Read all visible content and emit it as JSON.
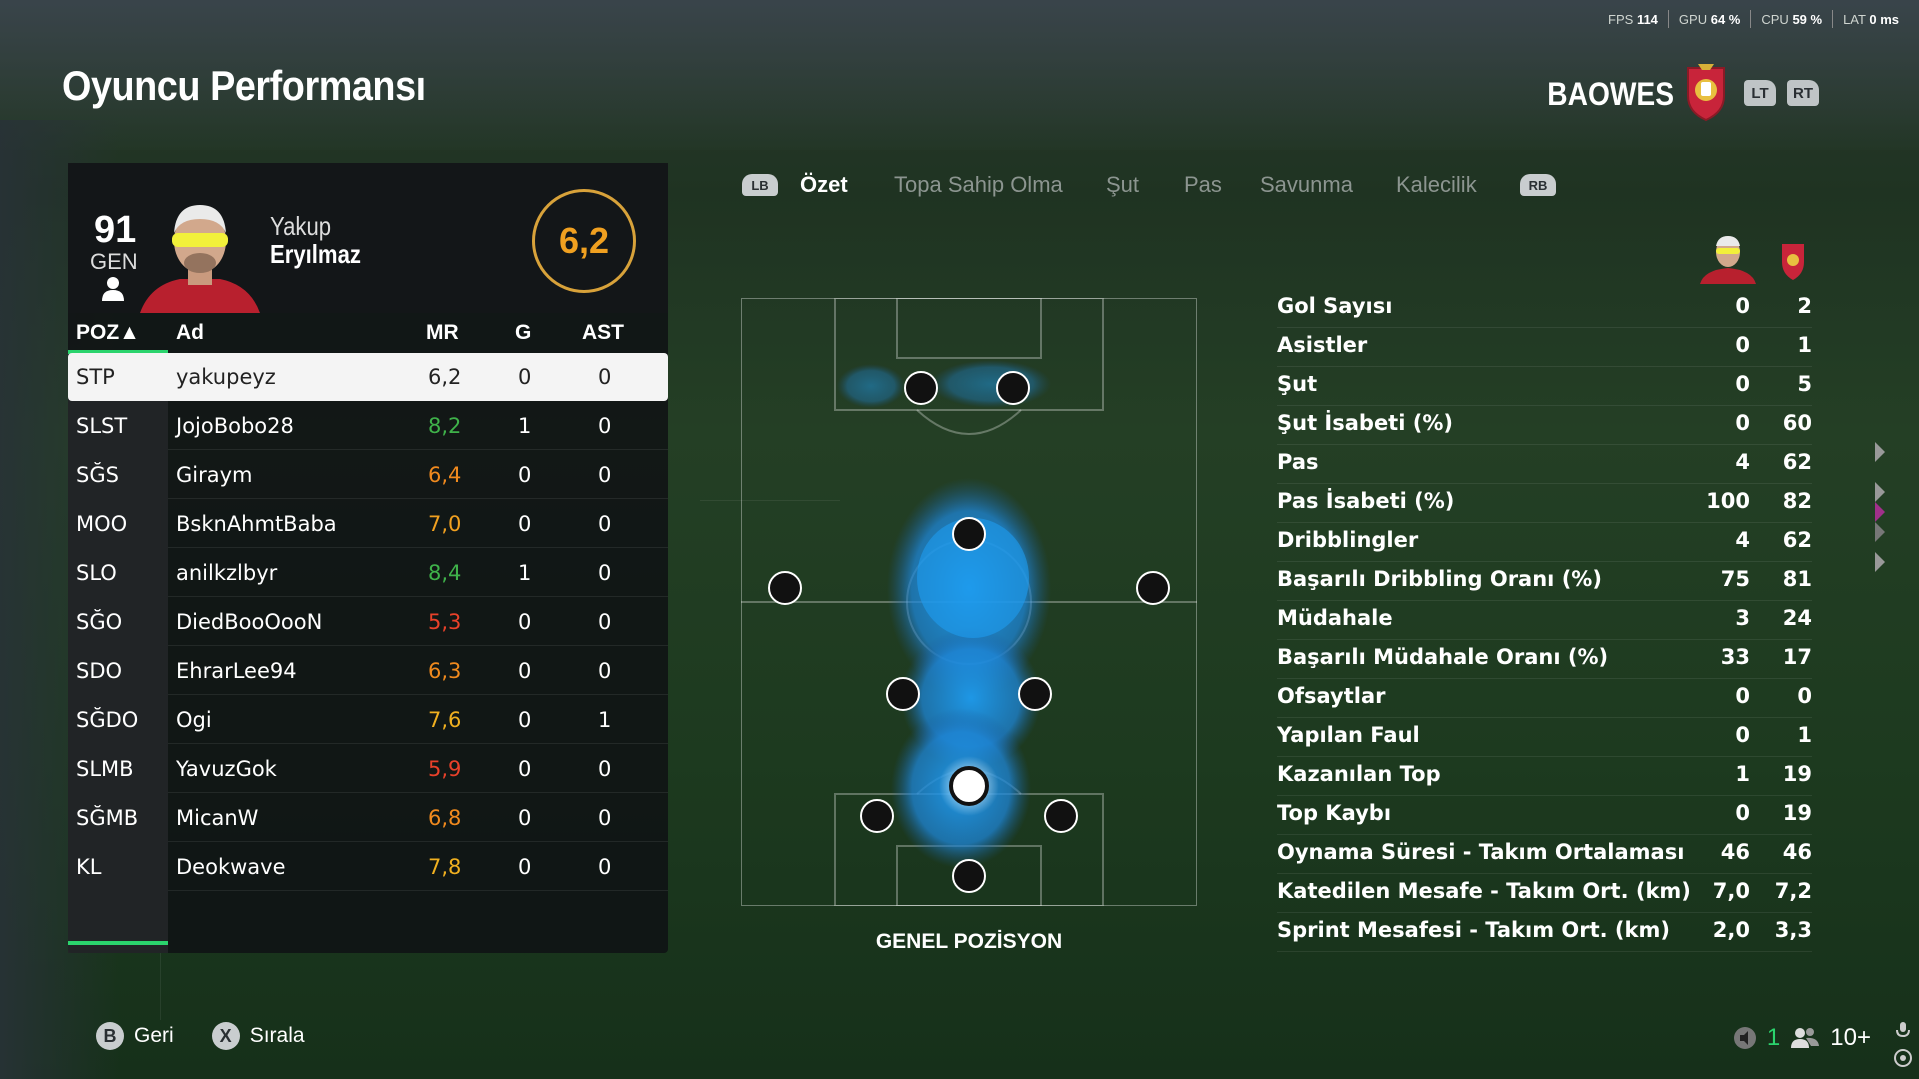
{
  "perf": {
    "fps_label": "FPS",
    "fps": "114",
    "gpu_label": "GPU",
    "gpu": "64 %",
    "cpu_label": "CPU",
    "cpu": "59 %",
    "lat_label": "LAT",
    "lat": "0 ms"
  },
  "page_title": "Oyuncu Performansı",
  "team": {
    "name": "BAOWES",
    "lt": "LT",
    "rt": "RT"
  },
  "player": {
    "ovr": "91",
    "ovr_label": "GEN",
    "first_name": "Yakup",
    "last_name": "Eryılmaz",
    "rating": "6,2"
  },
  "table": {
    "headers": {
      "pos": "POZ▲",
      "name": "Ad",
      "mr": "MR",
      "g": "G",
      "ast": "AST"
    },
    "rows": [
      {
        "pos": "STP",
        "name": "yakupeyz",
        "mr": "6,2",
        "g": "0",
        "ast": "0",
        "color": "#222222"
      },
      {
        "pos": "SLST",
        "name": "JojoBobo28",
        "mr": "8,2",
        "g": "1",
        "ast": "0",
        "color": "#3fb24a"
      },
      {
        "pos": "SĞS",
        "name": "Giraym",
        "mr": "6,4",
        "g": "0",
        "ast": "0",
        "color": "#f08a1e"
      },
      {
        "pos": "MOO",
        "name": "BsknAhmtBaba",
        "mr": "7,0",
        "g": "0",
        "ast": "0",
        "color": "#f0a020"
      },
      {
        "pos": "SLO",
        "name": "anilkzlbyr",
        "mr": "8,4",
        "g": "1",
        "ast": "0",
        "color": "#3fb24a"
      },
      {
        "pos": "SĞO",
        "name": "DiedBooOooN",
        "mr": "5,3",
        "g": "0",
        "ast": "0",
        "color": "#e8412a"
      },
      {
        "pos": "SDO",
        "name": "EhrarLee94",
        "mr": "6,3",
        "g": "0",
        "ast": "0",
        "color": "#f08a1e"
      },
      {
        "pos": "SĞDO",
        "name": "Ogi",
        "mr": "7,6",
        "g": "0",
        "ast": "1",
        "color": "#f0b020"
      },
      {
        "pos": "SLMB",
        "name": "YavuzGok",
        "mr": "5,9",
        "g": "0",
        "ast": "0",
        "color": "#e8412a"
      },
      {
        "pos": "SĞMB",
        "name": "MicanW",
        "mr": "6,8",
        "g": "0",
        "ast": "0",
        "color": "#f08a1e"
      },
      {
        "pos": "KL",
        "name": "Deokwave",
        "mr": "7,8",
        "g": "0",
        "ast": "0",
        "color": "#f0b020"
      }
    ]
  },
  "tabs": {
    "lb": "LB",
    "rb": "RB",
    "items": [
      "Özet",
      "Topa Sahip Olma",
      "Şut",
      "Pas",
      "Savunma",
      "Kalecilik"
    ],
    "active": "Özet"
  },
  "pitch": {
    "caption": "GENEL POZİSYON"
  },
  "stats": [
    {
      "label": "Gol Sayısı",
      "player": "0",
      "team": "2"
    },
    {
      "label": "Asistler",
      "player": "0",
      "team": "1"
    },
    {
      "label": "Şut",
      "player": "0",
      "team": "5"
    },
    {
      "label": "Şut İsabeti (%)",
      "player": "0",
      "team": "60"
    },
    {
      "label": "Pas",
      "player": "4",
      "team": "62"
    },
    {
      "label": "Pas İsabeti (%)",
      "player": "100",
      "team": "82"
    },
    {
      "label": "Dribblingler",
      "player": "4",
      "team": "62"
    },
    {
      "label": "Başarılı Dribbling Oranı (%)",
      "player": "75",
      "team": "81"
    },
    {
      "label": "Müdahale",
      "player": "3",
      "team": "24"
    },
    {
      "label": "Başarılı Müdahale Oranı (%)",
      "player": "33",
      "team": "17"
    },
    {
      "label": "Ofsaytlar",
      "player": "0",
      "team": "0"
    },
    {
      "label": "Yapılan Faul",
      "player": "0",
      "team": "1"
    },
    {
      "label": "Kazanılan Top",
      "player": "1",
      "team": "19"
    },
    {
      "label": "Top Kaybı",
      "player": "0",
      "team": "19"
    },
    {
      "label": "Oynama Süresi - Takım Ortalaması",
      "player": "46",
      "team": "46"
    },
    {
      "label": "Katedilen Mesafe - Takım Ort. (km)",
      "player": "7,0",
      "team": "7,2"
    },
    {
      "label": "Sprint Mesafesi - Takım Ort. (km)",
      "player": "2,0",
      "team": "3,3"
    }
  ],
  "bottom": {
    "back_key": "B",
    "back_label": "Geri",
    "sort_key": "X",
    "sort_label": "Sırala",
    "count": "1",
    "players": "10+"
  },
  "colors": {
    "accent_green": "#2bd46d",
    "rating_orange": "#f0a020",
    "heat_blue": "#1e9cf0"
  }
}
